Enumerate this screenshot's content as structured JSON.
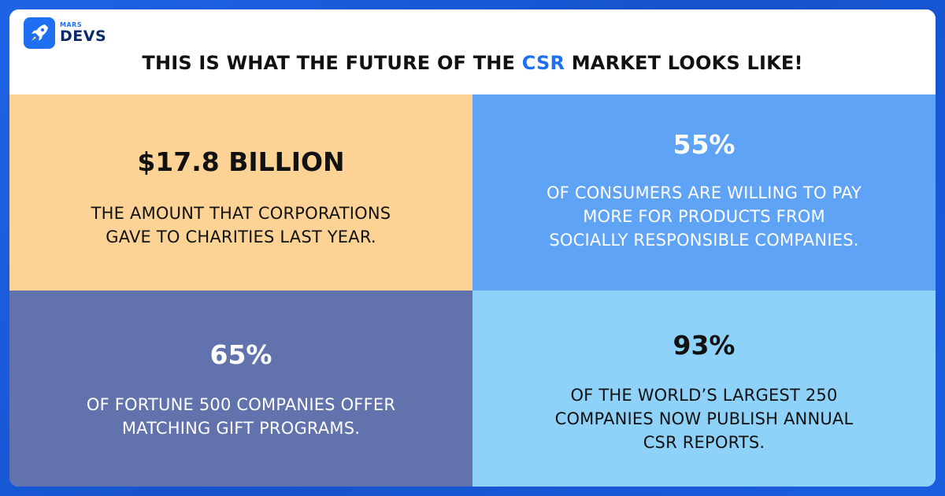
{
  "brand": {
    "small": "MARS",
    "big": "DEVS",
    "icon": "rocket-icon",
    "color": "#1f6ff2"
  },
  "headline": {
    "before": "THIS IS WHAT THE FUTURE OF THE ",
    "accent": "CSR",
    "after": " MARKET LOOKS LIKE!",
    "accent_color": "#1f6ff2"
  },
  "stats": [
    {
      "value": "$17.8 BILLION",
      "lines": [
        "THE AMOUNT THAT CORPORATIONS",
        "GAVE TO CHARITIES LAST YEAR."
      ],
      "color": "#fcd295"
    },
    {
      "value": "55%",
      "lines": [
        "OF CONSUMERS ARE WILLING TO PAY",
        "MORE FOR PRODUCTS FROM",
        "SOCIALLY RESPONSIBLE COMPANIES."
      ],
      "color": "#5fa3f7"
    },
    {
      "value": "65%",
      "lines": [
        "OF FORTUNE 500 COMPANIES OFFER",
        "MATCHING GIFT PROGRAMS."
      ],
      "color": "#6272ac"
    },
    {
      "value": "93%",
      "lines": [
        "OF THE WORLD’S LARGEST 250",
        "COMPANIES NOW PUBLISH ANNUAL",
        "CSR REPORTS."
      ],
      "color": "#8fd2f9"
    }
  ]
}
